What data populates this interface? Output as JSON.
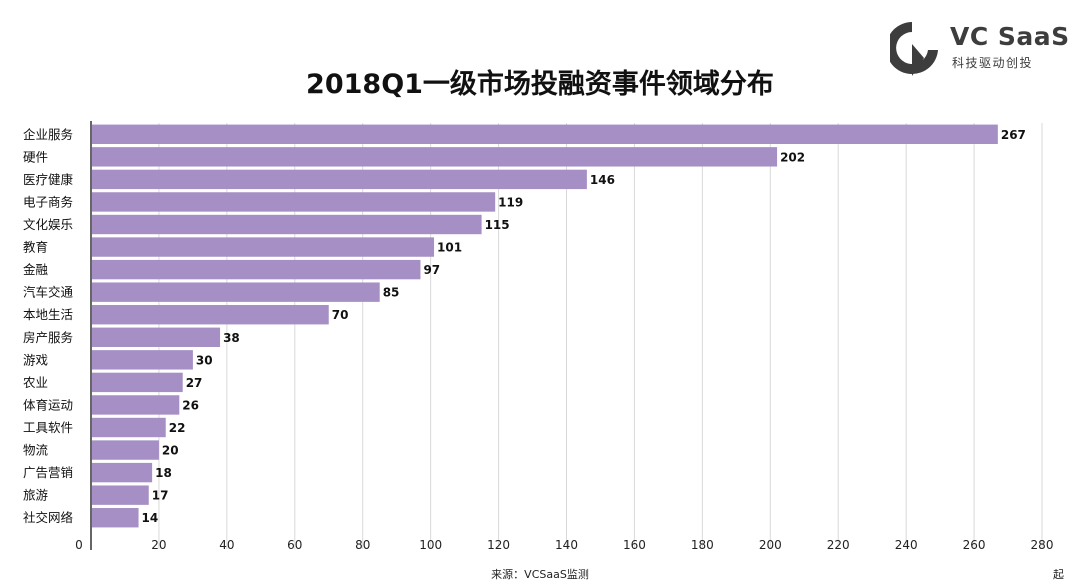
{
  "chart_data": {
    "type": "bar",
    "orientation": "horizontal",
    "title": "2018Q1一级市场投融资事件领域分布",
    "categories": [
      "企业服务",
      "硬件",
      "医疗健康",
      "电子商务",
      "文化娱乐",
      "教育",
      "金融",
      "汽车交通",
      "本地生活",
      "房产服务",
      "游戏",
      "农业",
      "体育运动",
      "工具软件",
      "物流",
      "广告营销",
      "旅游",
      "社交网络"
    ],
    "values": [
      267,
      202,
      146,
      119,
      115,
      101,
      97,
      85,
      70,
      38,
      30,
      27,
      26,
      22,
      20,
      18,
      17,
      14
    ],
    "xlim": [
      0,
      280
    ],
    "xticks": [
      0,
      20,
      40,
      60,
      80,
      100,
      120,
      140,
      160,
      180,
      200,
      220,
      240,
      260,
      280
    ],
    "grid": true,
    "bar_color": "#a58fc4",
    "grid_color": "#d9d9d9"
  },
  "logo": {
    "name": "VC SaaS",
    "sub": "科技驱动创投",
    "icon": "vc-saas-logo-icon",
    "color": "#3d3d3d"
  },
  "source": "来源：VCSaaS监测",
  "corner_text": "起"
}
